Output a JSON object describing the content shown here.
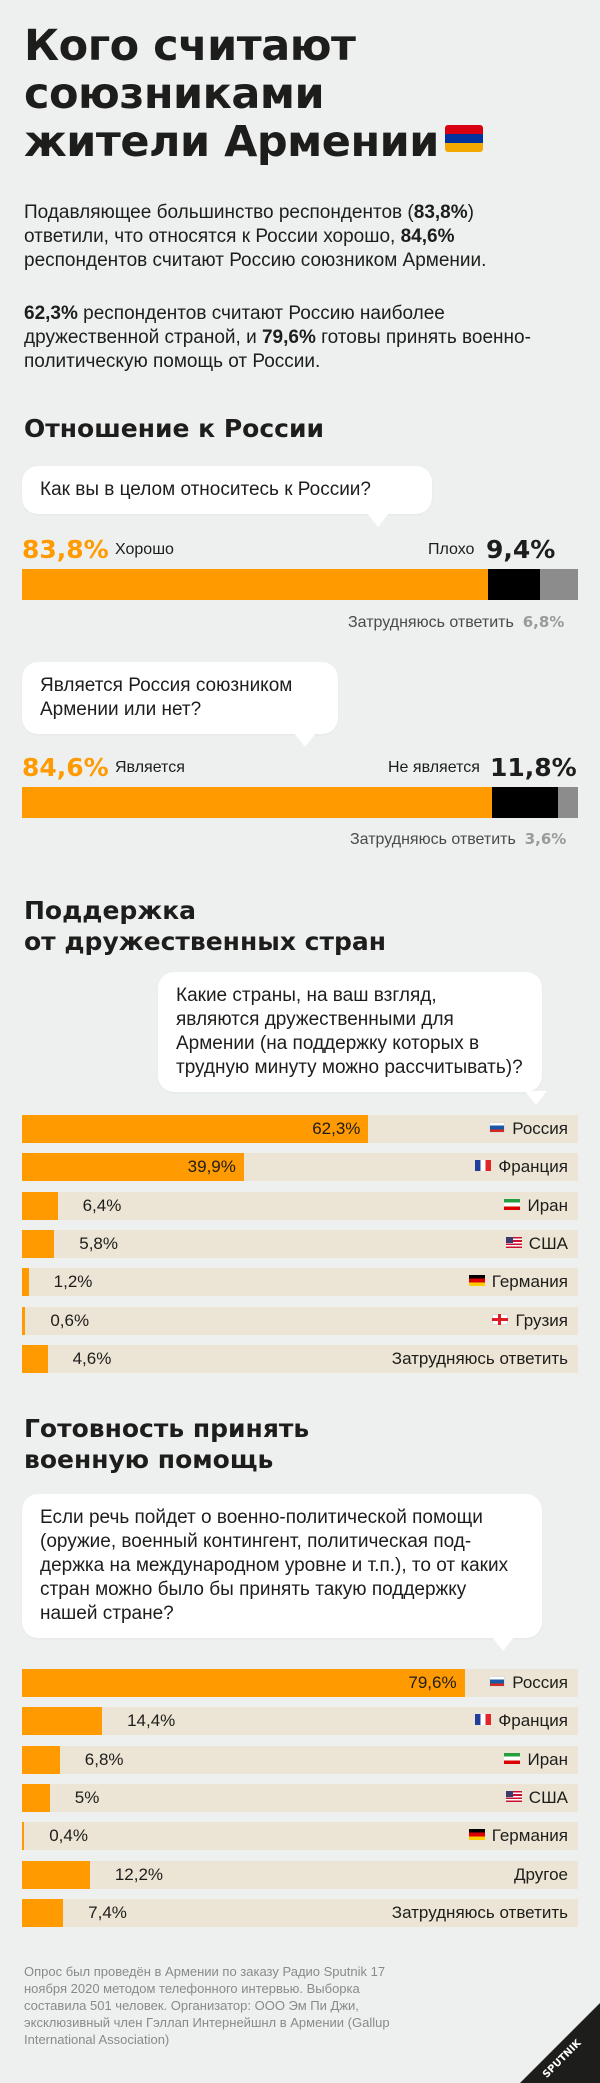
{
  "title_line1": "Кого считают",
  "title_line2": "союзниками",
  "title_line3": "жители Армении",
  "title_flag": "armenia-flag",
  "intro1": {
    "p1": "Подавляющее большинство респондентов (",
    "b1": "83,8%",
    "p2": ") ответили, что относятся к России хорошо, ",
    "b2": "84,6%",
    "p3": " респондентов считают Россию союзником Армении."
  },
  "intro2": {
    "b1": "62,3%",
    "p1": " респондентов считают Россию наиболее дружественной страной, и ",
    "b2": "79,6%",
    "p2": " готовы принять военно-политическую помощь от России."
  },
  "colors": {
    "orange": "#ff9a00",
    "black": "#000000",
    "gray": "#8c8c8c",
    "track": "#ece5d5",
    "background": "#edf0ef"
  },
  "section1": {
    "title": "Отношение к России",
    "q1": {
      "question": "Как вы в целом относитесь к России?",
      "good_pct": "83,8%",
      "good_label": "Хорошо",
      "bad_label": "Плохо",
      "bad_pct": "9,4%",
      "unsure_label": "Затрудняюсь ответить",
      "unsure_pct": "6,8%"
    },
    "q2": {
      "question": "Является Россия союзником Армении или нет?",
      "yes_pct": "84,6%",
      "yes_label": "Является",
      "no_label": "Не является",
      "no_pct": "11,8%",
      "unsure_label": "Затрудняюсь ответить",
      "unsure_pct": "3,6%"
    }
  },
  "section2": {
    "title1": "Поддержка",
    "title2": "от дружественных стран",
    "question": "Какие страны, на ваш взгляд, являются дружественными для Армении (на поддержку которых в трудную минуту можно рассчитывать)?"
  },
  "section3": {
    "title1": "Готовность принять",
    "title2": "военную помощь",
    "question": "Если речь пойдет о военно-политической помощи (оружие, военный контингент, политическая под-держка на международном уровне и т.п.), то от каких стран можно было бы принять такую поддержку нашей стране?"
  },
  "chart_data": [
    {
      "type": "bar",
      "stacked": true,
      "orientation": "horizontal",
      "title": "Как вы в целом относитесь к России?",
      "categories": [
        "Хорошо",
        "Плохо",
        "Затрудняюсь ответить"
      ],
      "values": [
        83.8,
        9.4,
        6.8
      ],
      "colors": [
        "#ff9a00",
        "#000000",
        "#8c8c8c"
      ]
    },
    {
      "type": "bar",
      "stacked": true,
      "orientation": "horizontal",
      "title": "Является Россия союзником Армении или нет?",
      "categories": [
        "Является",
        "Не является",
        "Затрудняюсь ответить"
      ],
      "values": [
        84.6,
        11.8,
        3.6
      ],
      "colors": [
        "#ff9a00",
        "#000000",
        "#8c8c8c"
      ]
    },
    {
      "type": "bar",
      "orientation": "horizontal",
      "title": "Какие страны, на ваш взгляд, являются дружественными для Армении",
      "xlim": [
        0,
        100
      ],
      "rows": [
        {
          "label": "Россия",
          "value": 62.3,
          "display": "62,3%",
          "flag": "ru"
        },
        {
          "label": "Франция",
          "value": 39.9,
          "display": "39,9%",
          "flag": "fr"
        },
        {
          "label": "Иран",
          "value": 6.4,
          "display": "6,4%",
          "flag": "ir"
        },
        {
          "label": "США",
          "value": 5.8,
          "display": "5,8%",
          "flag": "us"
        },
        {
          "label": "Германия",
          "value": 1.2,
          "display": "1,2%",
          "flag": "de"
        },
        {
          "label": "Грузия",
          "value": 0.6,
          "display": "0,6%",
          "flag": "ge"
        },
        {
          "label": "Затрудняюсь ответить",
          "value": 4.6,
          "display": "4,6%",
          "flag": ""
        }
      ]
    },
    {
      "type": "bar",
      "orientation": "horizontal",
      "title": "От каких стран можно было бы принять военно-политическую помощь",
      "xlim": [
        0,
        100
      ],
      "rows": [
        {
          "label": "Россия",
          "value": 79.6,
          "display": "79,6%",
          "flag": "ru"
        },
        {
          "label": "Франция",
          "value": 14.4,
          "display": "14,4%",
          "flag": "fr"
        },
        {
          "label": "Иран",
          "value": 6.8,
          "display": "6,8%",
          "flag": "ir"
        },
        {
          "label": "США",
          "value": 5,
          "display": "5%",
          "flag": "us"
        },
        {
          "label": "Германия",
          "value": 0.4,
          "display": "0,4%",
          "flag": "de"
        },
        {
          "label": "Другое",
          "value": 12.2,
          "display": "12,2%",
          "flag": ""
        },
        {
          "label": "Затрудняюсь ответить",
          "value": 7.4,
          "display": "7,4%",
          "flag": ""
        }
      ]
    }
  ],
  "footer": "Опрос был проведён в Армении по заказу Радио Sputnik 17 ноября 2020 методом телефонного интервью. Выборка составила 501 человек. Организатор: ООО Эм Пи Джи, эксклюзивный член Гэллап Интернейшнл в Армении (Gallup International Association)",
  "logo_text": "SPUTNIK"
}
